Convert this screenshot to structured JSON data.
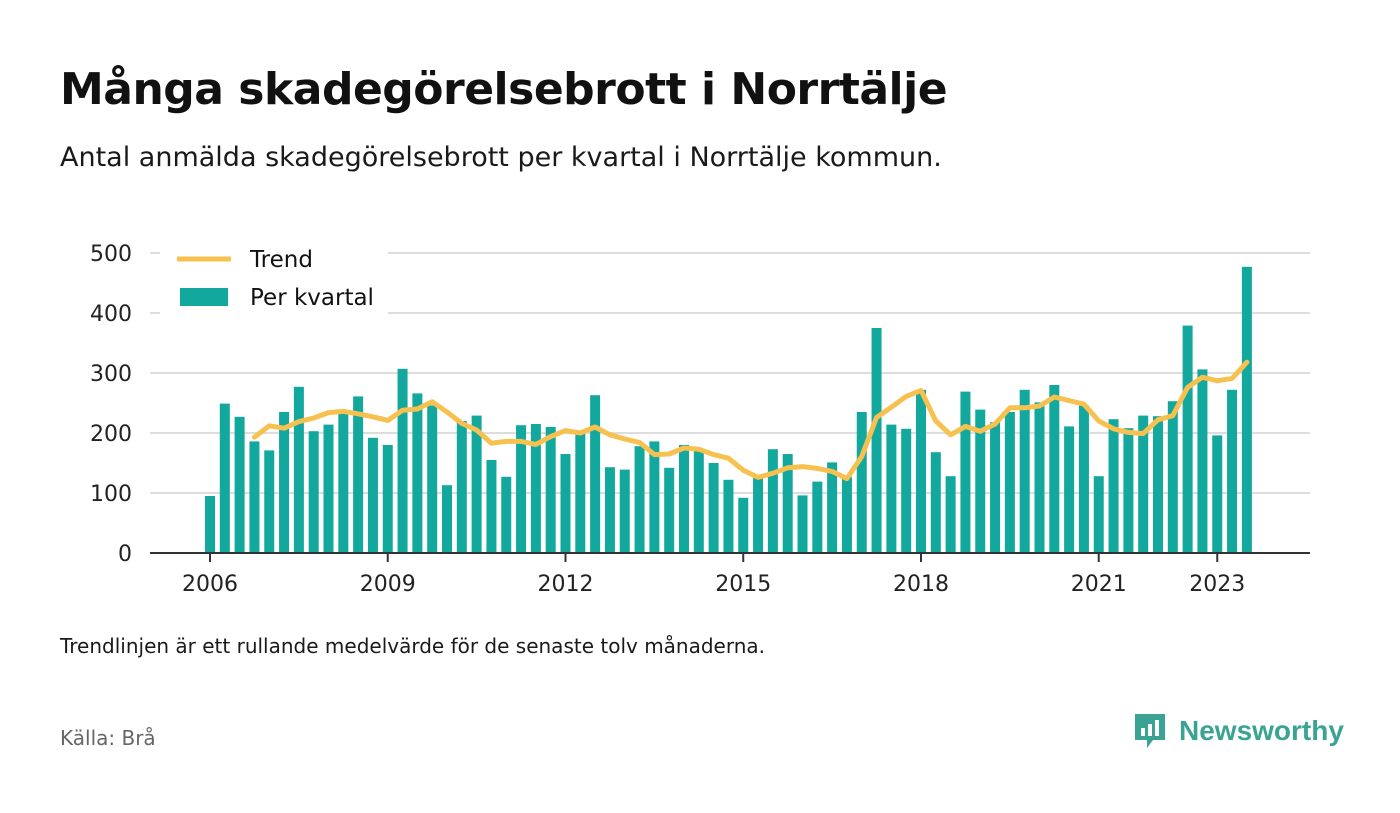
{
  "header": {
    "title": "Många skadegörelsebrott i Norrtälje",
    "subtitle": "Antal anmälda skadegörelsebrott per kvartal i Norrtälje kommun."
  },
  "footer": {
    "note": "Trendlinjen är ett rullande medelvärde för de senaste tolv månaderna.",
    "source": "Källa: Brå",
    "brand": "Newsworthy",
    "brand_icon": "bar-chart-speech-bubble-icon"
  },
  "colors": {
    "bar": "#13a89e",
    "trend": "#f7c14f",
    "grid": "#dddddd",
    "axis": "#333333",
    "brand": "#3aa394"
  },
  "chart_data": {
    "type": "bar",
    "title": "Många skadegörelsebrott i Norrtälje",
    "subtitle": "Antal anmälda skadegörelsebrott per kvartal i Norrtälje kommun.",
    "xlabel": "",
    "ylabel": "",
    "ylim": [
      0,
      500
    ],
    "yticks": [
      0,
      100,
      200,
      300,
      400,
      500
    ],
    "xtick_labels": [
      "2006",
      "2009",
      "2012",
      "2015",
      "2018",
      "2021",
      "2023"
    ],
    "xtick_positions": [
      2006,
      2009,
      2012,
      2015,
      2018,
      2021,
      2023
    ],
    "grid": true,
    "legend_position": "top-left",
    "x": [
      2006.0,
      2006.25,
      2006.5,
      2006.75,
      2007.0,
      2007.25,
      2007.5,
      2007.75,
      2008.0,
      2008.25,
      2008.5,
      2008.75,
      2009.0,
      2009.25,
      2009.5,
      2009.75,
      2010.0,
      2010.25,
      2010.5,
      2010.75,
      2011.0,
      2011.25,
      2011.5,
      2011.75,
      2012.0,
      2012.25,
      2012.5,
      2012.75,
      2013.0,
      2013.25,
      2013.5,
      2013.75,
      2014.0,
      2014.25,
      2014.5,
      2014.75,
      2015.0,
      2015.25,
      2015.5,
      2015.75,
      2016.0,
      2016.25,
      2016.5,
      2016.75,
      2017.0,
      2017.25,
      2017.5,
      2017.75,
      2018.0,
      2018.25,
      2018.5,
      2018.75,
      2019.0,
      2019.25,
      2019.5,
      2019.75,
      2020.0,
      2020.25,
      2020.5,
      2020.75,
      2021.0,
      2021.25,
      2021.5,
      2021.75,
      2022.0,
      2022.25,
      2022.5,
      2022.75,
      2023.0,
      2023.25,
      2023.5
    ],
    "series": [
      {
        "name": "Per kvartal",
        "type": "bar",
        "values": [
          95,
          249,
          227,
          186,
          171,
          235,
          277,
          203,
          214,
          232,
          261,
          192,
          180,
          307,
          266,
          246,
          113,
          220,
          229,
          155,
          127,
          213,
          215,
          210,
          165,
          200,
          263,
          143,
          139,
          178,
          186,
          142,
          180,
          172,
          150,
          122,
          92,
          126,
          173,
          165,
          96,
          119,
          151,
          127,
          235,
          375,
          214,
          207,
          272,
          168,
          128,
          269,
          239,
          218,
          235,
          272,
          251,
          280,
          211,
          246,
          128,
          223,
          208,
          229,
          228,
          253,
          379,
          306,
          196,
          272,
          477
        ]
      },
      {
        "name": "Trend",
        "type": "line",
        "values": [
          null,
          null,
          null,
          193,
          212,
          208,
          219,
          225,
          234,
          236,
          232,
          227,
          221,
          238,
          240,
          252,
          235,
          216,
          205,
          183,
          186,
          186,
          181,
          194,
          204,
          200,
          210,
          197,
          190,
          184,
          164,
          165,
          175,
          173,
          164,
          158,
          138,
          126,
          133,
          142,
          144,
          141,
          136,
          124,
          161,
          226,
          243,
          261,
          271,
          220,
          197,
          211,
          203,
          215,
          242,
          242,
          245,
          260,
          254,
          248,
          220,
          207,
          201,
          199,
          222,
          229,
          276,
          293,
          287,
          291,
          318
        ]
      }
    ]
  }
}
